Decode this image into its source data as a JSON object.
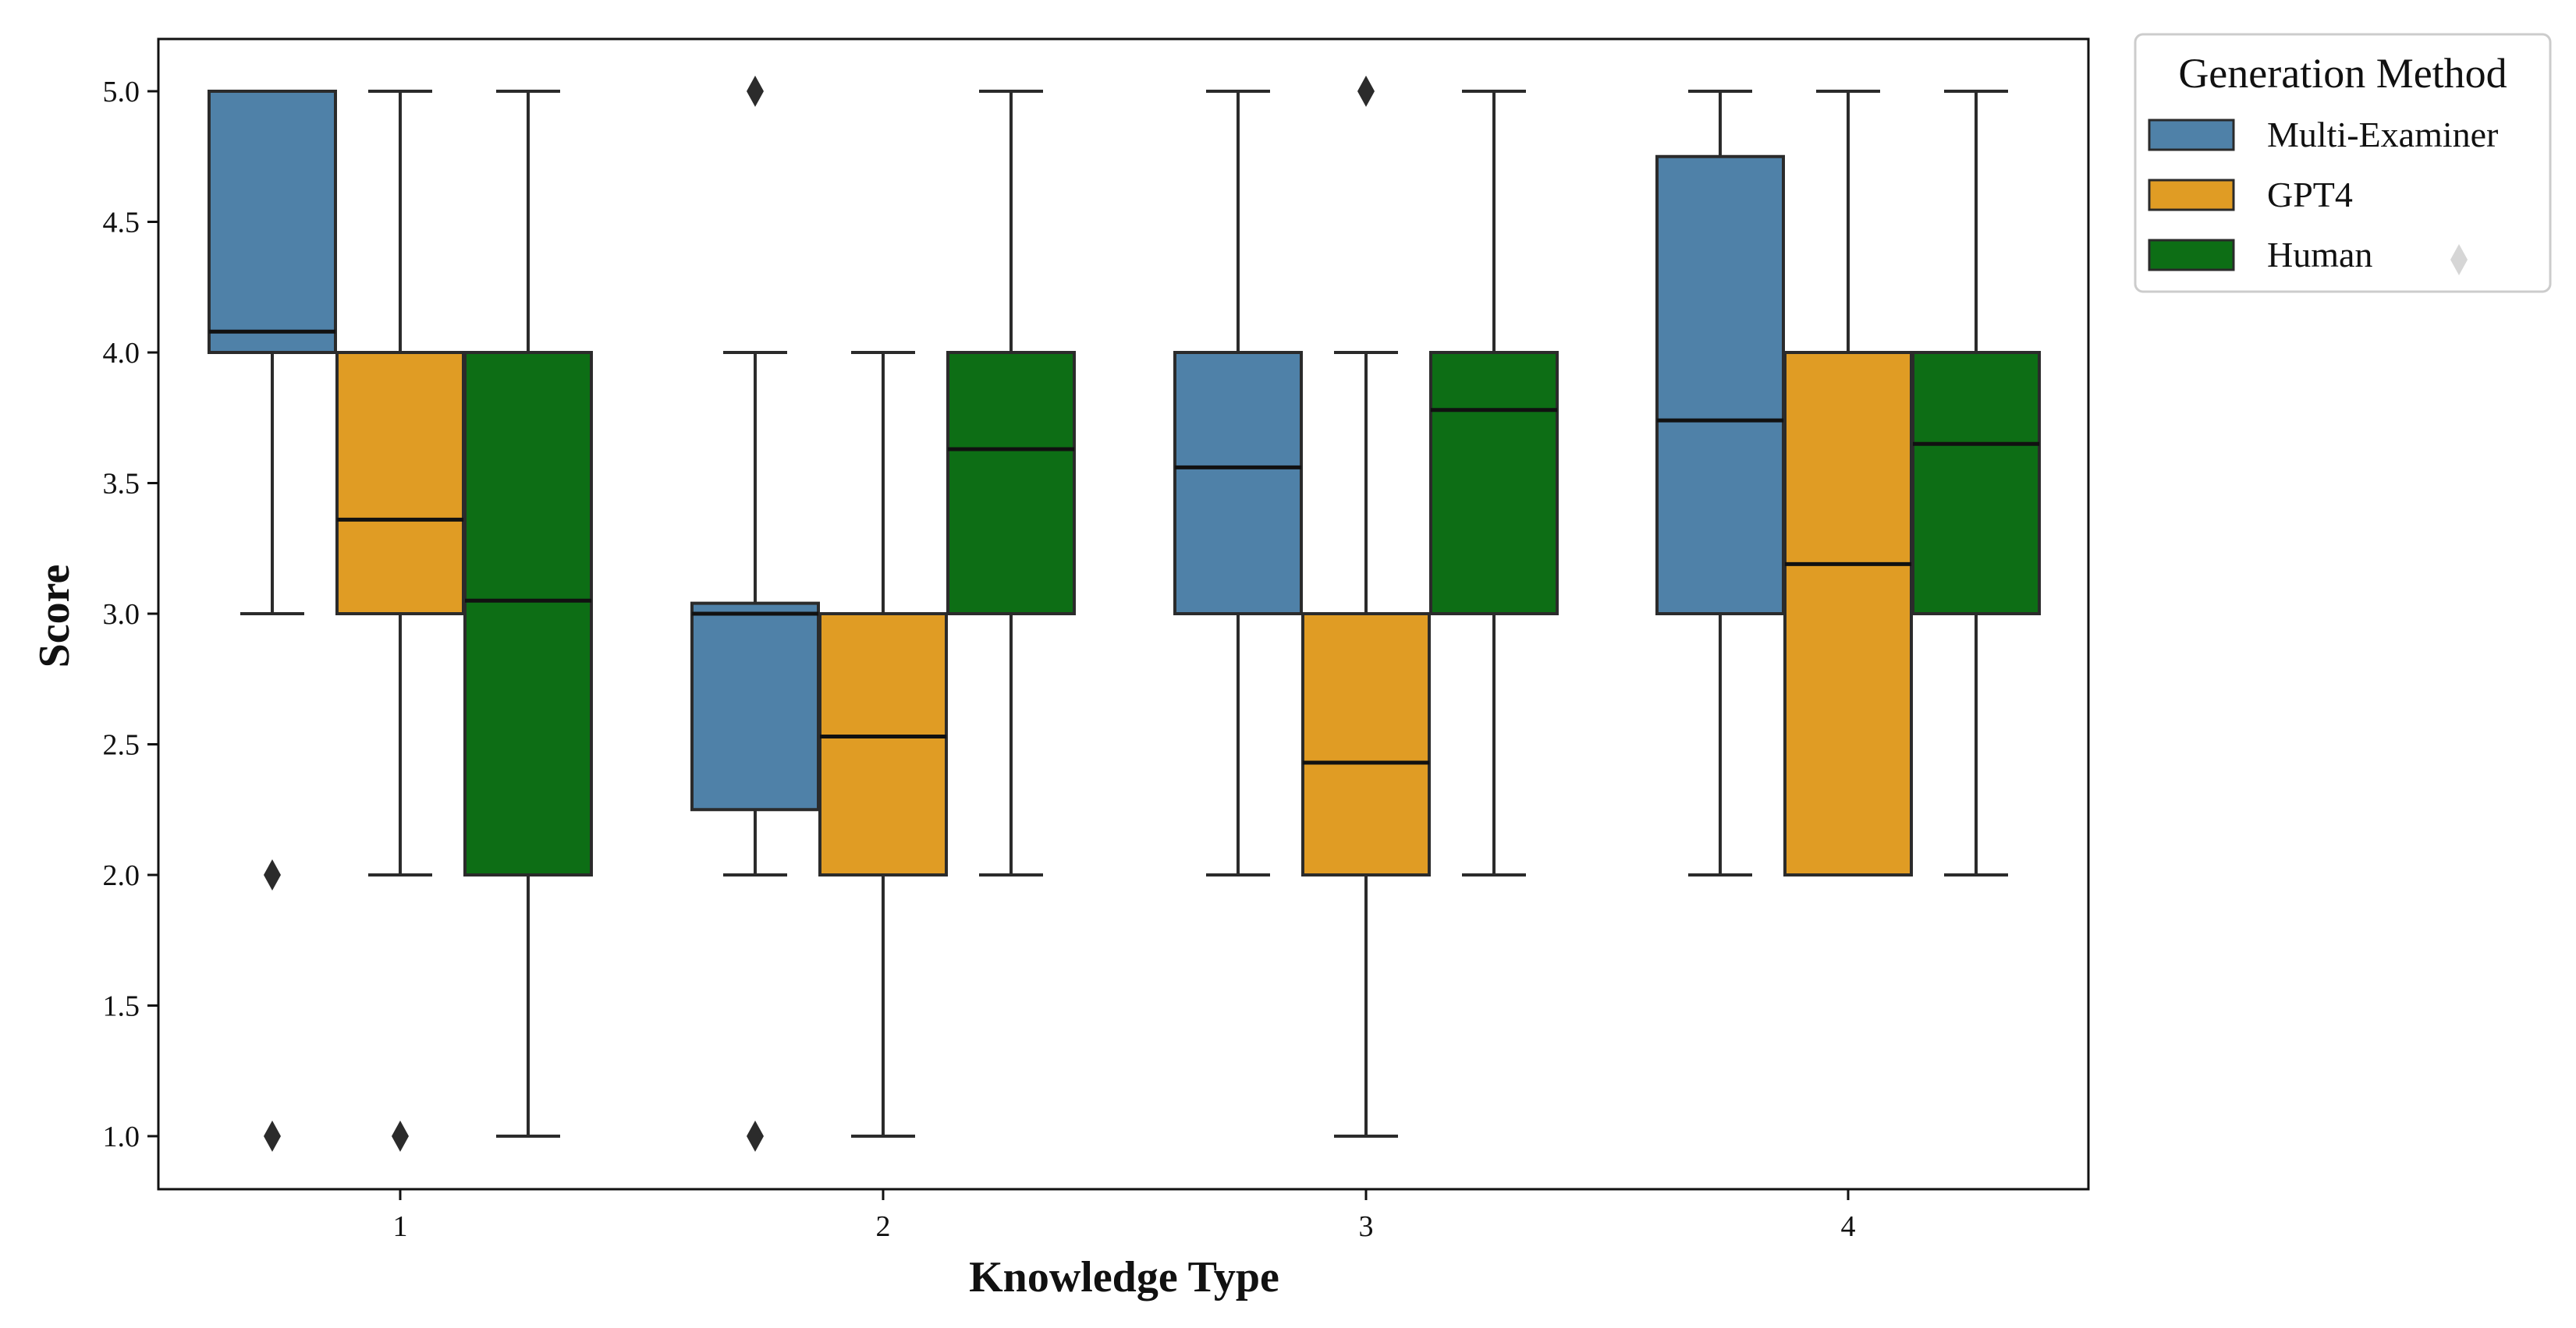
{
  "chart_data": {
    "type": "box",
    "title": "",
    "xlabel": "Knowledge Type",
    "ylabel": "Score",
    "categories": [
      "1",
      "2",
      "3",
      "4"
    ],
    "y_ticks": [
      "1.0",
      "1.5",
      "2.0",
      "2.5",
      "3.0",
      "3.5",
      "4.0",
      "4.5",
      "5.0"
    ],
    "ylim": [
      0.9,
      5.1
    ],
    "grid": false,
    "legend": {
      "title": "Generation Method",
      "position": "outside-top-right",
      "entries": [
        "Multi-Examiner",
        "GPT4",
        "Human"
      ]
    },
    "series": [
      {
        "name": "Multi-Examiner",
        "color": "#4f81a8",
        "boxes": [
          {
            "category": "1",
            "whisker_low": 3.0,
            "q1": 4.0,
            "median": 4.08,
            "q3": 5.0,
            "whisker_high": 5.0,
            "outliers": [
              2.0,
              1.0
            ]
          },
          {
            "category": "2",
            "whisker_low": 2.0,
            "q1": 2.25,
            "median": 3.0,
            "q3": 3.04,
            "whisker_high": 4.0,
            "outliers": [
              5.0,
              1.0
            ]
          },
          {
            "category": "3",
            "whisker_low": 2.0,
            "q1": 3.0,
            "median": 3.56,
            "q3": 4.0,
            "whisker_high": 5.0,
            "outliers": []
          },
          {
            "category": "4",
            "whisker_low": 2.0,
            "q1": 3.0,
            "median": 3.74,
            "q3": 4.75,
            "whisker_high": 5.0,
            "outliers": []
          }
        ]
      },
      {
        "name": "GPT4",
        "color": "#e09c24",
        "boxes": [
          {
            "category": "1",
            "whisker_low": 2.0,
            "q1": 3.0,
            "median": 3.36,
            "q3": 4.0,
            "whisker_high": 5.0,
            "outliers": [
              1.0
            ]
          },
          {
            "category": "2",
            "whisker_low": 1.0,
            "q1": 2.0,
            "median": 2.53,
            "q3": 3.0,
            "whisker_high": 4.0,
            "outliers": []
          },
          {
            "category": "3",
            "whisker_low": 1.0,
            "q1": 2.0,
            "median": 2.43,
            "q3": 3.0,
            "whisker_high": 4.0,
            "outliers": [
              5.0
            ]
          },
          {
            "category": "4",
            "whisker_low": 2.0,
            "q1": 2.0,
            "median": 3.19,
            "q3": 4.0,
            "whisker_high": 5.0,
            "outliers": []
          }
        ]
      },
      {
        "name": "Human",
        "color": "#0d6e15",
        "boxes": [
          {
            "category": "1",
            "whisker_low": 1.0,
            "q1": 2.0,
            "median": 3.05,
            "q3": 4.0,
            "whisker_high": 5.0,
            "outliers": []
          },
          {
            "category": "2",
            "whisker_low": 2.0,
            "q1": 3.0,
            "median": 3.63,
            "q3": 4.0,
            "whisker_high": 5.0,
            "outliers": []
          },
          {
            "category": "3",
            "whisker_low": 2.0,
            "q1": 3.0,
            "median": 3.78,
            "q3": 4.0,
            "whisker_high": 5.0,
            "outliers": []
          },
          {
            "category": "4",
            "whisker_low": 2.0,
            "q1": 3.0,
            "median": 3.65,
            "q3": 4.0,
            "whisker_high": 5.0,
            "outliers": []
          }
        ]
      }
    ]
  }
}
